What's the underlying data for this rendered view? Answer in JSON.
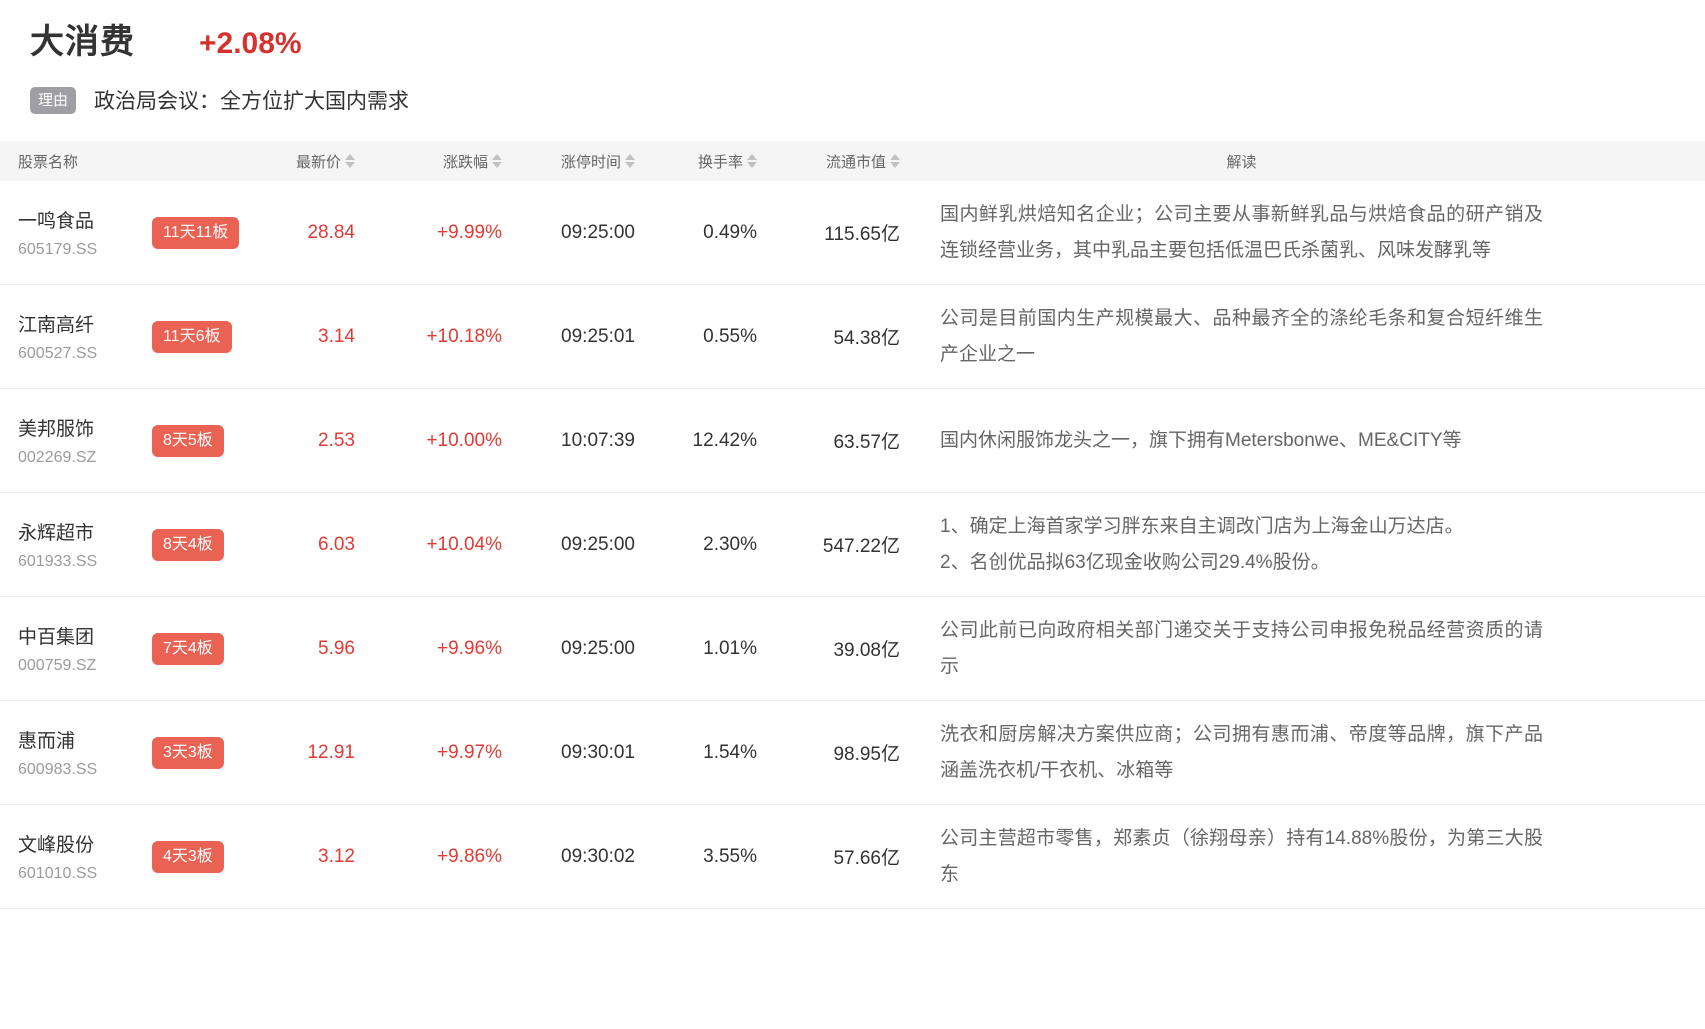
{
  "header": {
    "sector_name": "大消费",
    "sector_change": "+2.08%",
    "reason_badge": "理由",
    "reason_text": "政治局会议：全方位扩大国内需求"
  },
  "colors": {
    "change_red": "#d5322e",
    "table_red": "#e23b35",
    "badge_bg": "#e96254",
    "reason_badge_bg": "#9e9ea4",
    "header_bg": "#f5f5f5"
  },
  "table": {
    "columns": [
      {
        "label": "股票名称",
        "sortable": false
      },
      {
        "label": "最新价",
        "sortable": true
      },
      {
        "label": "涨跌幅",
        "sortable": true
      },
      {
        "label": "涨停时间",
        "sortable": true
      },
      {
        "label": "换手率",
        "sortable": true
      },
      {
        "label": "流通市值",
        "sortable": true
      },
      {
        "label": "解读",
        "sortable": false
      }
    ],
    "rows": [
      {
        "name": "一鸣食品",
        "code": "605179.SS",
        "badge": "11天11板",
        "price": "28.84",
        "change": "+9.99%",
        "limit_time": "09:25:00",
        "turnover": "0.49%",
        "market_cap": "115.65亿",
        "desc": "国内鲜乳烘焙知名企业；公司主要从事新鲜乳品与烘焙食品的研产销及连锁经营业务，其中乳品主要包括低温巴氏杀菌乳、风味发酵乳等"
      },
      {
        "name": "江南高纤",
        "code": "600527.SS",
        "badge": "11天6板",
        "price": "3.14",
        "change": "+10.18%",
        "limit_time": "09:25:01",
        "turnover": "0.55%",
        "market_cap": "54.38亿",
        "desc": "公司是目前国内生产规模最大、品种最齐全的涤纶毛条和复合短纤维生产企业之一"
      },
      {
        "name": "美邦服饰",
        "code": "002269.SZ",
        "badge": "8天5板",
        "price": "2.53",
        "change": "+10.00%",
        "limit_time": "10:07:39",
        "turnover": "12.42%",
        "market_cap": "63.57亿",
        "desc": "国内休闲服饰龙头之一，旗下拥有Metersbonwe、ME&CITY等"
      },
      {
        "name": "永辉超市",
        "code": "601933.SS",
        "badge": "8天4板",
        "price": "6.03",
        "change": "+10.04%",
        "limit_time": "09:25:00",
        "turnover": "2.30%",
        "market_cap": "547.22亿",
        "desc": "1、确定上海首家学习胖东来自主调改门店为上海金山万达店。\n2、名创优品拟63亿现金收购公司29.4%股份。"
      },
      {
        "name": "中百集团",
        "code": "000759.SZ",
        "badge": "7天4板",
        "price": "5.96",
        "change": "+9.96%",
        "limit_time": "09:25:00",
        "turnover": "1.01%",
        "market_cap": "39.08亿",
        "desc": "公司此前已向政府相关部门递交关于支持公司申报免税品经营资质的请示"
      },
      {
        "name": "惠而浦",
        "code": "600983.SS",
        "badge": "3天3板",
        "price": "12.91",
        "change": "+9.97%",
        "limit_time": "09:30:01",
        "turnover": "1.54%",
        "market_cap": "98.95亿",
        "desc": "洗衣和厨房解决方案供应商；公司拥有惠而浦、帝度等品牌，旗下产品涵盖洗衣机/干衣机、冰箱等"
      },
      {
        "name": "文峰股份",
        "code": "601010.SS",
        "badge": "4天3板",
        "price": "3.12",
        "change": "+9.86%",
        "limit_time": "09:30:02",
        "turnover": "3.55%",
        "market_cap": "57.66亿",
        "desc": "公司主营超市零售，郑素贞（徐翔母亲）持有14.88%股份，为第三大股东"
      }
    ]
  }
}
